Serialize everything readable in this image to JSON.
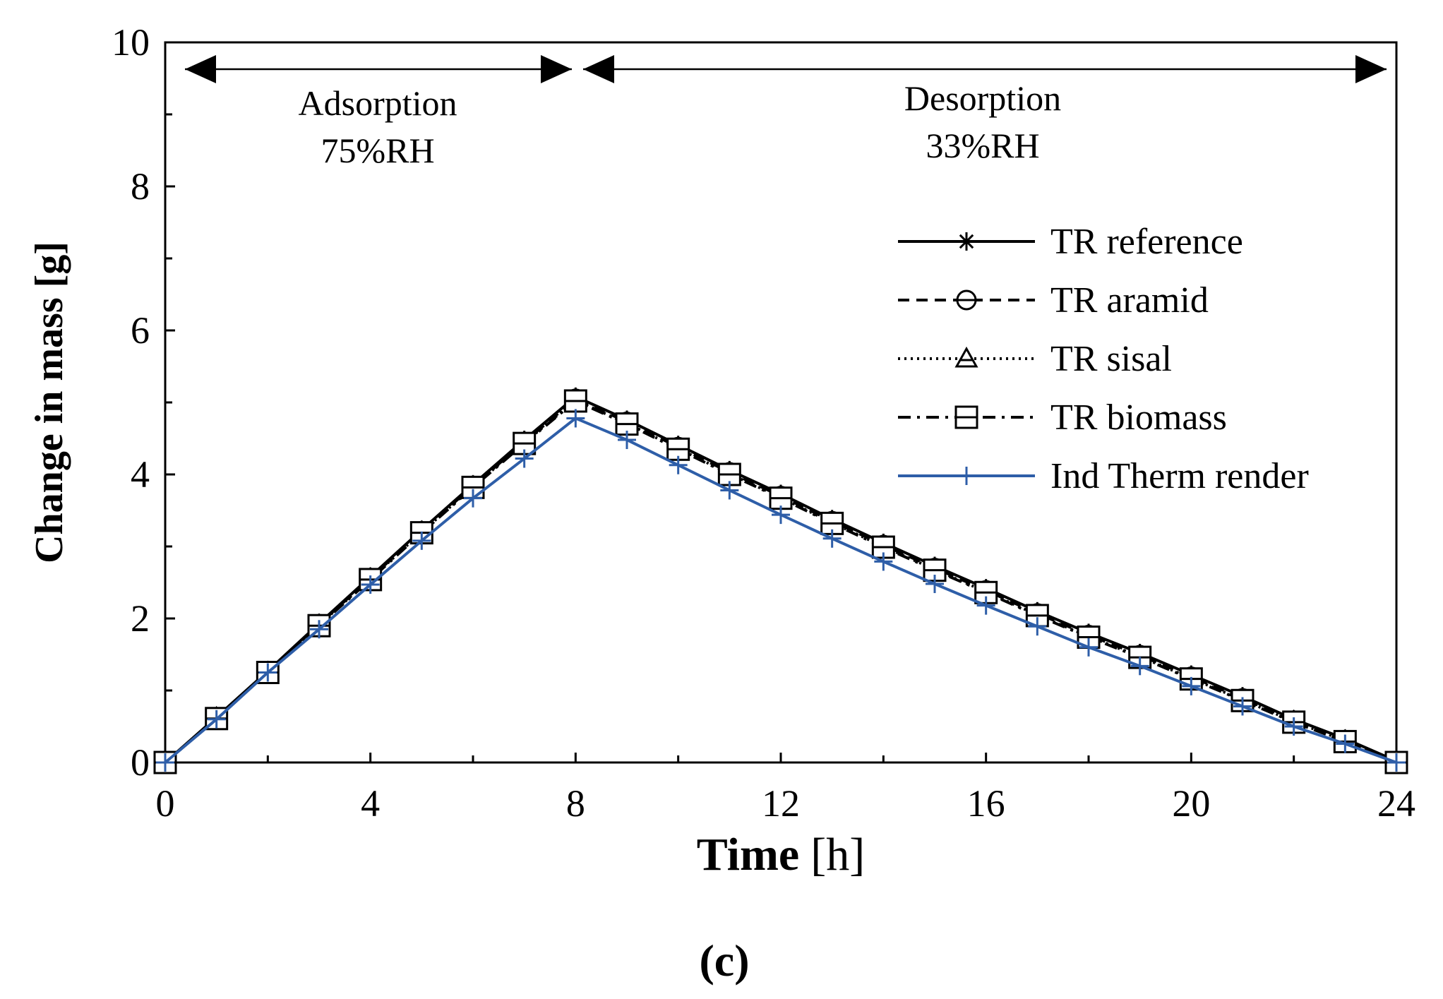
{
  "chart_data": {
    "type": "line",
    "xlabel_bold": "Time",
    "xlabel_unit": "[h]",
    "ylabel": "Change in mass [g]",
    "xlim": [
      0,
      24
    ],
    "ylim": [
      0,
      10
    ],
    "x_ticks": [
      "0",
      "4",
      "8",
      "12",
      "16",
      "20",
      "24"
    ],
    "y_ticks": [
      "0",
      "2",
      "4",
      "6",
      "8",
      "10"
    ],
    "grid": false,
    "legend_position": "right, mid-upper",
    "panel_label": "(c)",
    "annotations": {
      "adsorption": {
        "line1": "Adsorption",
        "line2": "75%RH",
        "x_range": [
          0,
          8
        ]
      },
      "desorption": {
        "line1": "Desorption",
        "line2": "33%RH",
        "x_range": [
          8,
          24
        ]
      }
    },
    "x": [
      0,
      1,
      2,
      3,
      4,
      5,
      6,
      7,
      8,
      9,
      10,
      11,
      12,
      13,
      14,
      15,
      16,
      17,
      18,
      19,
      20,
      21,
      22,
      23,
      24
    ],
    "series": [
      {
        "name": "TR reference",
        "marker": "asterisk",
        "dash": "solid",
        "color": "#000000",
        "values": [
          0,
          0.63,
          1.27,
          1.93,
          2.58,
          3.23,
          3.86,
          4.48,
          5.08,
          4.76,
          4.41,
          4.06,
          3.73,
          3.38,
          3.05,
          2.73,
          2.42,
          2.1,
          1.8,
          1.52,
          1.22,
          0.92,
          0.6,
          0.33,
          0.02
        ]
      },
      {
        "name": "TR aramid",
        "marker": "circle",
        "dash": "dashed",
        "color": "#000000",
        "values": [
          0,
          0.62,
          1.26,
          1.92,
          2.56,
          3.21,
          3.84,
          4.45,
          5.05,
          4.73,
          4.38,
          4.03,
          3.7,
          3.35,
          3.02,
          2.7,
          2.39,
          2.07,
          1.77,
          1.49,
          1.19,
          0.89,
          0.58,
          0.31,
          0.01
        ]
      },
      {
        "name": "TR sisal",
        "marker": "triangle",
        "dash": "dotted",
        "color": "#000000",
        "values": [
          0,
          0.62,
          1.25,
          1.91,
          2.55,
          3.2,
          3.83,
          4.44,
          5.03,
          4.71,
          4.36,
          4.01,
          3.68,
          3.33,
          3.0,
          2.68,
          2.37,
          2.05,
          1.75,
          1.47,
          1.17,
          0.87,
          0.57,
          0.3,
          0.01
        ]
      },
      {
        "name": "TR biomass",
        "marker": "square",
        "dash": "dashdot",
        "color": "#000000",
        "values": [
          0,
          0.61,
          1.25,
          1.9,
          2.54,
          3.19,
          3.82,
          4.43,
          5.02,
          4.7,
          4.35,
          4.0,
          3.67,
          3.32,
          2.99,
          2.67,
          2.36,
          2.04,
          1.74,
          1.46,
          1.16,
          0.86,
          0.56,
          0.29,
          0.0
        ]
      },
      {
        "name": "Ind Therm render",
        "marker": "plus",
        "dash": "solid",
        "color": "#2e5ea8",
        "values": [
          0,
          0.6,
          1.25,
          1.85,
          2.47,
          3.08,
          3.67,
          4.22,
          4.78,
          4.48,
          4.13,
          3.78,
          3.44,
          3.11,
          2.79,
          2.48,
          2.18,
          1.89,
          1.6,
          1.34,
          1.06,
          0.78,
          0.5,
          0.26,
          0.0
        ]
      }
    ]
  }
}
